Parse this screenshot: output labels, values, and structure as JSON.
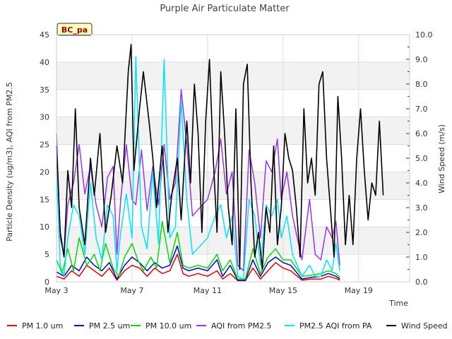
{
  "chart_data": {
    "type": "line",
    "title": "Purple Air Particulate Matter",
    "xlabel": "Time",
    "ylabel": "Particle Density (ug/m3), AQI from PM2.5",
    "y2label": "Wind Speed (m/s)",
    "badge": "BC_pa",
    "xlim": [
      3,
      21.7
    ],
    "ylim": [
      0,
      45
    ],
    "y2lim": [
      0,
      10
    ],
    "x_ticks": [
      {
        "value": 3,
        "label": "May 3"
      },
      {
        "value": 7,
        "label": "May 7"
      },
      {
        "value": 11,
        "label": "May 11"
      },
      {
        "value": 15,
        "label": "May 15"
      },
      {
        "value": 19,
        "label": "May 19"
      }
    ],
    "y_ticks": [
      0,
      5,
      10,
      15,
      20,
      25,
      30,
      35,
      40,
      45
    ],
    "y2_ticks": [
      {
        "value": 0,
        "label": "0.0"
      },
      {
        "value": 1,
        "label": "1.0"
      },
      {
        "value": 2,
        "label": "2.0"
      },
      {
        "value": 3,
        "label": "3.0"
      },
      {
        "value": 4,
        "label": "4.0"
      },
      {
        "value": 5,
        "label": "5.0"
      },
      {
        "value": 6,
        "label": "6.0"
      },
      {
        "value": 7,
        "label": "7.0"
      },
      {
        "value": 8,
        "label": "8.0"
      },
      {
        "value": 9,
        "label": "9.0"
      },
      {
        "value": 10,
        "label": "10.0"
      }
    ],
    "legend_position": "bottom",
    "series": [
      {
        "name": "PM 1.0 um",
        "color": "#dd0000",
        "axis": "left",
        "points": [
          [
            3.0,
            1.0
          ],
          [
            3.4,
            0.5
          ],
          [
            3.8,
            2.0
          ],
          [
            4.2,
            1.0
          ],
          [
            4.6,
            3.0
          ],
          [
            5.0,
            2.0
          ],
          [
            5.4,
            1.0
          ],
          [
            5.8,
            2.5
          ],
          [
            6.2,
            0.3
          ],
          [
            6.6,
            2.0
          ],
          [
            7.0,
            3.0
          ],
          [
            7.4,
            2.5
          ],
          [
            7.8,
            1.0
          ],
          [
            8.2,
            2.5
          ],
          [
            8.6,
            1.5
          ],
          [
            9.0,
            2.0
          ],
          [
            9.4,
            5.0
          ],
          [
            9.7,
            1.5
          ],
          [
            10.0,
            1.0
          ],
          [
            10.5,
            1.5
          ],
          [
            11.0,
            1.0
          ],
          [
            11.5,
            2.0
          ],
          [
            11.8,
            0.5
          ],
          [
            12.2,
            1.5
          ],
          [
            12.6,
            0.2
          ],
          [
            13.0,
            0.2
          ],
          [
            13.4,
            2.5
          ],
          [
            13.8,
            0.5
          ],
          [
            14.2,
            2.0
          ],
          [
            14.6,
            3.5
          ],
          [
            15.0,
            2.5
          ],
          [
            15.4,
            2.0
          ],
          [
            16.0,
            0.3
          ],
          [
            16.5,
            0.5
          ],
          [
            17.0,
            0.5
          ],
          [
            17.4,
            1.0
          ],
          [
            17.8,
            0.6
          ],
          [
            18.0,
            0.3
          ]
        ]
      },
      {
        "name": "PM 2.5 um",
        "color": "#0000cc",
        "axis": "left",
        "points": [
          [
            3.0,
            1.8
          ],
          [
            3.4,
            1.0
          ],
          [
            3.8,
            3.0
          ],
          [
            4.2,
            2.0
          ],
          [
            4.6,
            4.5
          ],
          [
            5.0,
            3.0
          ],
          [
            5.4,
            2.0
          ],
          [
            5.8,
            3.5
          ],
          [
            6.2,
            0.5
          ],
          [
            6.6,
            3.0
          ],
          [
            7.0,
            4.5
          ],
          [
            7.4,
            3.5
          ],
          [
            7.8,
            2.0
          ],
          [
            8.2,
            3.5
          ],
          [
            8.6,
            2.5
          ],
          [
            9.0,
            3.0
          ],
          [
            9.4,
            6.5
          ],
          [
            9.7,
            2.5
          ],
          [
            10.0,
            2.0
          ],
          [
            10.5,
            2.5
          ],
          [
            11.0,
            2.0
          ],
          [
            11.5,
            4.0
          ],
          [
            11.8,
            1.0
          ],
          [
            12.2,
            3.0
          ],
          [
            12.6,
            0.3
          ],
          [
            13.0,
            0.3
          ],
          [
            13.4,
            4.0
          ],
          [
            13.8,
            1.0
          ],
          [
            14.2,
            3.5
          ],
          [
            14.6,
            4.5
          ],
          [
            15.0,
            3.5
          ],
          [
            15.4,
            3.0
          ],
          [
            16.0,
            0.5
          ],
          [
            16.5,
            0.8
          ],
          [
            17.0,
            1.0
          ],
          [
            17.4,
            1.5
          ],
          [
            17.8,
            1.0
          ],
          [
            18.0,
            0.5
          ]
        ]
      },
      {
        "name": "PM 10.0 um",
        "color": "#00dd00",
        "axis": "left",
        "points": [
          [
            3.0,
            4.0
          ],
          [
            3.3,
            1.5
          ],
          [
            3.6,
            6.0
          ],
          [
            3.9,
            2.0
          ],
          [
            4.2,
            8.0
          ],
          [
            4.6,
            3.0
          ],
          [
            5.0,
            5.0
          ],
          [
            5.3,
            2.0
          ],
          [
            5.6,
            7.0
          ],
          [
            6.0,
            2.5
          ],
          [
            6.3,
            1.0
          ],
          [
            6.6,
            4.5
          ],
          [
            7.0,
            7.0
          ],
          [
            7.3,
            4.0
          ],
          [
            7.6,
            2.0
          ],
          [
            8.0,
            4.5
          ],
          [
            8.3,
            2.5
          ],
          [
            8.6,
            11.0
          ],
          [
            9.0,
            3.5
          ],
          [
            9.4,
            9.0
          ],
          [
            9.7,
            3.0
          ],
          [
            10.0,
            2.5
          ],
          [
            10.5,
            3.0
          ],
          [
            11.0,
            2.5
          ],
          [
            11.5,
            5.0
          ],
          [
            11.8,
            2.0
          ],
          [
            12.2,
            4.0
          ],
          [
            12.6,
            0.5
          ],
          [
            13.0,
            0.5
          ],
          [
            13.4,
            6.0
          ],
          [
            13.8,
            1.5
          ],
          [
            14.2,
            4.5
          ],
          [
            14.6,
            6.0
          ],
          [
            15.0,
            4.0
          ],
          [
            15.4,
            4.0
          ],
          [
            16.0,
            1.0
          ],
          [
            16.5,
            1.2
          ],
          [
            17.0,
            1.5
          ],
          [
            17.4,
            2.0
          ],
          [
            17.8,
            1.5
          ],
          [
            18.0,
            0.8
          ]
        ]
      },
      {
        "name": "AQI from PM2.5",
        "color": "#9933ee",
        "axis": "left",
        "points": [
          [
            3.0,
            27.0
          ],
          [
            3.2,
            8.0
          ],
          [
            3.4,
            5.0
          ],
          [
            3.6,
            14.0
          ],
          [
            3.9,
            18.0
          ],
          [
            4.2,
            25.0
          ],
          [
            4.5,
            16.0
          ],
          [
            4.8,
            21.0
          ],
          [
            5.1,
            14.0
          ],
          [
            5.4,
            10.0
          ],
          [
            5.7,
            19.0
          ],
          [
            6.0,
            21.0
          ],
          [
            6.2,
            5.0
          ],
          [
            6.4,
            15.0
          ],
          [
            6.7,
            25.0
          ],
          [
            7.0,
            15.0
          ],
          [
            7.2,
            14.0
          ],
          [
            7.5,
            24.0
          ],
          [
            7.8,
            13.0
          ],
          [
            8.1,
            21.0
          ],
          [
            8.4,
            14.0
          ],
          [
            8.7,
            25.0
          ],
          [
            9.0,
            15.0
          ],
          [
            9.3,
            18.0
          ],
          [
            9.6,
            35.0
          ],
          [
            9.9,
            25.0
          ],
          [
            10.2,
            12.0
          ],
          [
            11.0,
            15.0
          ],
          [
            11.4,
            20.0
          ],
          [
            11.7,
            26.0
          ],
          [
            12.0,
            16.0
          ],
          [
            12.3,
            20.0
          ],
          [
            12.6,
            3.0
          ],
          [
            12.9,
            2.0
          ],
          [
            13.2,
            24.0
          ],
          [
            13.5,
            18.0
          ],
          [
            13.8,
            8.0
          ],
          [
            14.1,
            22.0
          ],
          [
            14.4,
            20.0
          ],
          [
            14.7,
            26.0
          ],
          [
            14.9,
            15.0
          ],
          [
            15.2,
            20.0
          ],
          [
            15.5,
            12.0
          ],
          [
            16.0,
            4.0
          ],
          [
            16.4,
            15.0
          ],
          [
            16.7,
            5.0
          ],
          [
            17.0,
            4.0
          ],
          [
            17.3,
            10.0
          ],
          [
            17.6,
            8.0
          ],
          [
            17.8,
            11.0
          ],
          [
            18.0,
            3.0
          ]
        ]
      },
      {
        "name": "PM2.5 AQI from PA",
        "color": "#00e5ff",
        "axis": "left",
        "points": [
          [
            3.0,
            20.0
          ],
          [
            3.2,
            3.0
          ],
          [
            3.4,
            1.0
          ],
          [
            3.6,
            8.0
          ],
          [
            3.9,
            14.0
          ],
          [
            4.2,
            12.0
          ],
          [
            4.5,
            5.0
          ],
          [
            4.8,
            18.0
          ],
          [
            5.1,
            8.0
          ],
          [
            5.4,
            4.0
          ],
          [
            5.7,
            14.0
          ],
          [
            6.0,
            12.0
          ],
          [
            6.2,
            2.0
          ],
          [
            6.4,
            9.0
          ],
          [
            6.7,
            16.0
          ],
          [
            7.0,
            8.0
          ],
          [
            7.2,
            41.0
          ],
          [
            7.5,
            10.0
          ],
          [
            7.8,
            6.0
          ],
          [
            8.1,
            20.0
          ],
          [
            8.4,
            7.0
          ],
          [
            8.7,
            40.5
          ],
          [
            9.0,
            8.0
          ],
          [
            9.3,
            10.0
          ],
          [
            9.6,
            33.0
          ],
          [
            9.9,
            15.0
          ],
          [
            10.2,
            5.0
          ],
          [
            11.0,
            8.0
          ],
          [
            11.4,
            12.0
          ],
          [
            11.7,
            14.0
          ],
          [
            12.0,
            8.0
          ],
          [
            12.3,
            12.0
          ],
          [
            12.6,
            1.0
          ],
          [
            12.9,
            0.5
          ],
          [
            13.2,
            15.0
          ],
          [
            13.5,
            12.0
          ],
          [
            13.8,
            3.0
          ],
          [
            14.1,
            14.0
          ],
          [
            14.4,
            12.0
          ],
          [
            14.7,
            15.0
          ],
          [
            14.9,
            8.0
          ],
          [
            15.2,
            12.0
          ],
          [
            15.5,
            5.0
          ],
          [
            16.0,
            1.0
          ],
          [
            16.4,
            3.0
          ],
          [
            16.7,
            1.0
          ],
          [
            17.0,
            1.0
          ],
          [
            17.3,
            4.0
          ],
          [
            17.6,
            2.0
          ],
          [
            17.8,
            7.0
          ],
          [
            18.0,
            2.0
          ]
        ]
      },
      {
        "name": "Wind Speed",
        "color": "#000000",
        "axis": "right",
        "points": [
          [
            3.0,
            5.5
          ],
          [
            3.2,
            2.0
          ],
          [
            3.4,
            1.0
          ],
          [
            3.6,
            4.5
          ],
          [
            3.8,
            3.0
          ],
          [
            4.0,
            7.0
          ],
          [
            4.2,
            3.0
          ],
          [
            4.5,
            1.5
          ],
          [
            4.8,
            5.0
          ],
          [
            5.0,
            3.5
          ],
          [
            5.3,
            6.0
          ],
          [
            5.6,
            2.0
          ],
          [
            5.9,
            3.5
          ],
          [
            6.2,
            5.5
          ],
          [
            6.5,
            4.0
          ],
          [
            6.8,
            8.5
          ],
          [
            6.95,
            9.6
          ],
          [
            7.1,
            4.5
          ],
          [
            7.4,
            7.0
          ],
          [
            7.6,
            8.5
          ],
          [
            7.9,
            6.5
          ],
          [
            8.1,
            5.0
          ],
          [
            8.3,
            3.0
          ],
          [
            8.6,
            5.5
          ],
          [
            8.9,
            2.0
          ],
          [
            9.1,
            3.5
          ],
          [
            9.4,
            5.0
          ],
          [
            9.6,
            2.5
          ],
          [
            9.9,
            6.5
          ],
          [
            10.1,
            4.0
          ],
          [
            10.3,
            8.0
          ],
          [
            10.5,
            6.0
          ],
          [
            10.7,
            2.0
          ],
          [
            10.9,
            6.5
          ],
          [
            11.1,
            9.0
          ],
          [
            11.3,
            5.0
          ],
          [
            11.5,
            2.0
          ],
          [
            11.7,
            8.5
          ],
          [
            11.9,
            6.0
          ],
          [
            12.1,
            3.0
          ],
          [
            12.3,
            1.5
          ],
          [
            12.5,
            7.0
          ],
          [
            12.7,
            0.5
          ],
          [
            12.9,
            8.0
          ],
          [
            13.1,
            8.8
          ],
          [
            13.3,
            4.0
          ],
          [
            13.5,
            1.0
          ],
          [
            13.7,
            2.0
          ],
          [
            13.9,
            0.5
          ],
          [
            14.1,
            3.0
          ],
          [
            14.3,
            2.0
          ],
          [
            14.5,
            5.5
          ],
          [
            14.7,
            1.5
          ],
          [
            14.9,
            3.0
          ],
          [
            15.1,
            6.0
          ],
          [
            15.3,
            5.0
          ],
          [
            15.5,
            4.5
          ],
          [
            15.7,
            3.0
          ],
          [
            15.9,
            1.0
          ],
          [
            16.1,
            7.0
          ],
          [
            16.3,
            4.0
          ],
          [
            16.5,
            5.0
          ],
          [
            16.7,
            3.5
          ],
          [
            16.9,
            8.0
          ],
          [
            17.1,
            8.5
          ],
          [
            17.3,
            5.0
          ],
          [
            17.5,
            3.0
          ],
          [
            17.7,
            1.0
          ],
          [
            17.9,
            7.5
          ],
          [
            18.1,
            5.0
          ],
          [
            18.3,
            1.5
          ],
          [
            18.5,
            3.5
          ],
          [
            18.7,
            1.5
          ],
          [
            18.9,
            5.0
          ],
          [
            19.1,
            7.0
          ],
          [
            19.3,
            4.5
          ],
          [
            19.5,
            2.5
          ],
          [
            19.7,
            4.0
          ],
          [
            19.9,
            3.5
          ],
          [
            20.1,
            6.5
          ],
          [
            20.3,
            3.5
          ]
        ]
      }
    ]
  }
}
